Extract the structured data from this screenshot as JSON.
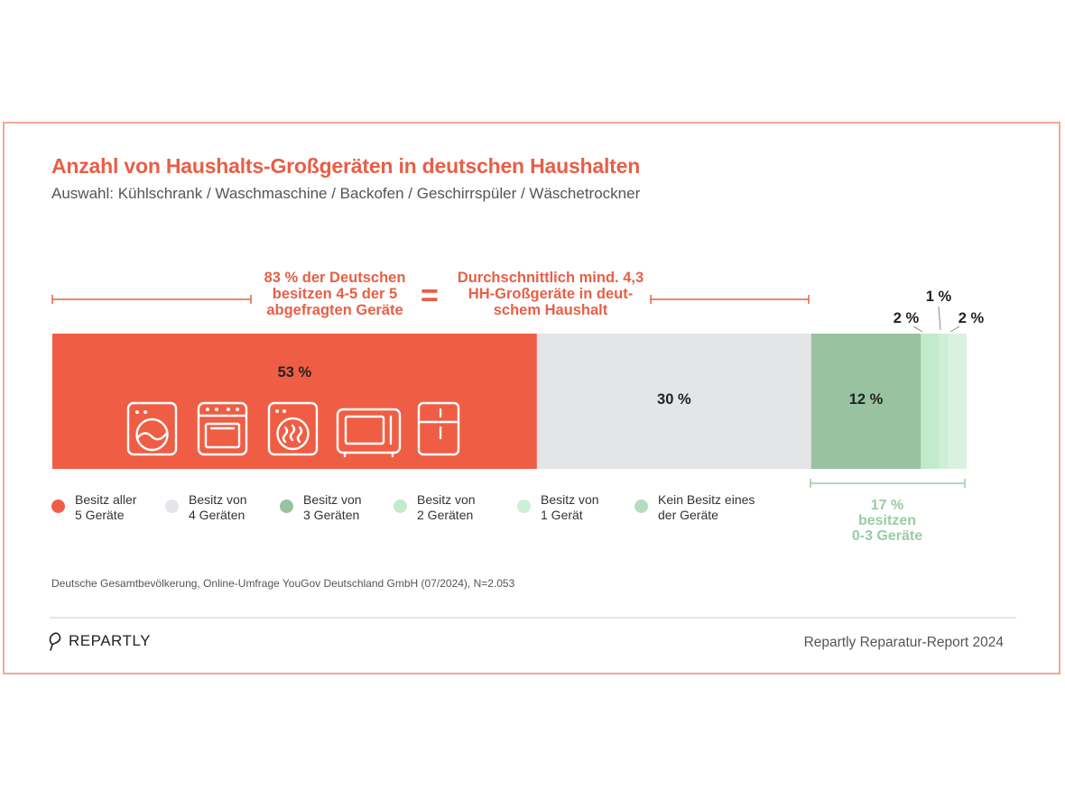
{
  "header": {
    "title": "Anzahl von Haushalts-Großgeräten in deutschen Haushalten",
    "subtitle": "Auswahl: Kühlschrank / Waschmaschine / Backofen / Geschirrspüler / Wäschetrockner"
  },
  "callouts": {
    "left_line1": "83 % der Deutschen",
    "left_line2": "besitzen 4-5 der 5",
    "left_line3": "abgefragten Geräte",
    "equals": "=",
    "right_line1": "Durchschnittlich mind. 4,3",
    "right_line2": "HH-Großgeräte in deut-",
    "right_line3": "schem Haushalt"
  },
  "chart_data": {
    "type": "bar",
    "orientation": "horizontal-stacked-100",
    "categories": [
      "Besitz aller 5 Geräte",
      "Besitz von 4 Geräten",
      "Besitz von 3 Geräten",
      "Besitz von 2 Geräten",
      "Besitz von 1 Gerät",
      "Kein Besitz eines der Geräte"
    ],
    "values": [
      53,
      30,
      12,
      2,
      1,
      2
    ],
    "labels": [
      "53 %",
      "30 %",
      "12 %",
      "2 %",
      "1 %",
      "2 %"
    ],
    "colors": [
      "#ef5e44",
      "#e4e5e8",
      "#98c2a0",
      "#c3ebcb",
      "#cfeed6",
      "#daf1e0"
    ],
    "unit": "%",
    "title": "Anzahl von Haushalts-Großgeräten in deutschen Haushalten"
  },
  "legend": [
    {
      "line1": "Besitz aller",
      "line2": "5 Geräte",
      "color": "#ef5e44"
    },
    {
      "line1": "Besitz von",
      "line2": "4 Geräten",
      "color": "#e4e5e8"
    },
    {
      "line1": "Besitz von",
      "line2": "3 Geräten",
      "color": "#98c2a0"
    },
    {
      "line1": "Besitz von",
      "line2": "2 Geräten",
      "color": "#c3ebcb"
    },
    {
      "line1": "Besitz von",
      "line2": "1 Gerät",
      "color": "#cfeed6"
    },
    {
      "line1": "Kein Besitz eines",
      "line2": "der Geräte",
      "color": "#b6dcc0"
    }
  ],
  "summary": {
    "line1": "17 %",
    "line2": "besitzen",
    "line3": "0-3 Geräte"
  },
  "appliance_icons": [
    "washing-machine-icon",
    "oven-icon",
    "dryer-icon",
    "microwave-icon",
    "fridge-icon"
  ],
  "source": "Deutsche Gesamtbevölkerung, Online-Umfrage YouGov Deutschland GmbH (07/2024), N=2.053",
  "footer": {
    "logo": "REPARTLY",
    "report": "Repartly Reparatur-Report 2024"
  }
}
